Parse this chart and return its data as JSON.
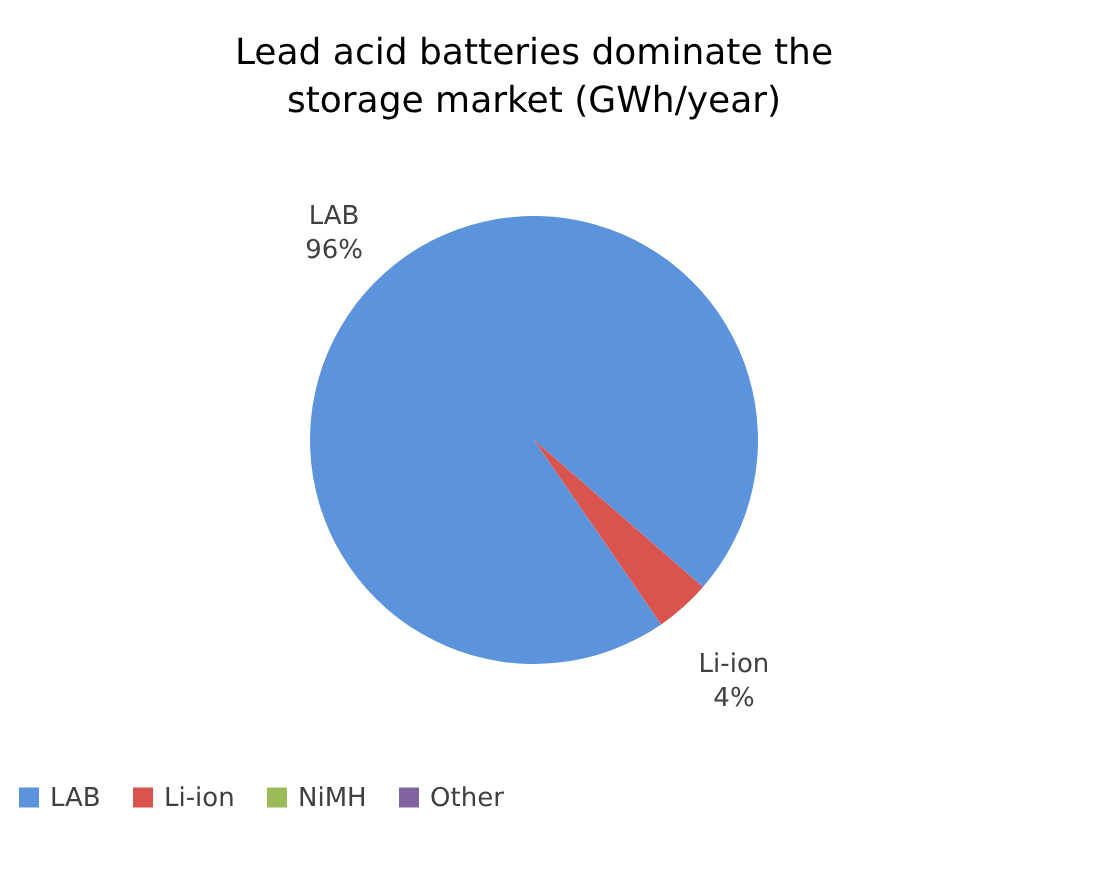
{
  "chart_data": {
    "type": "pie",
    "title": "Lead acid batteries dominate the storage market (GWh/year)",
    "categories": [
      "LAB",
      "Li-ion",
      "NiMH",
      "Other"
    ],
    "values": [
      96,
      4,
      0,
      0
    ],
    "colors": [
      "#5b93dc",
      "#d9534f",
      "#9bbb59",
      "#8064a2"
    ],
    "value_labels": [
      "96%",
      "4%",
      null,
      null
    ],
    "legend": "bottom"
  }
}
